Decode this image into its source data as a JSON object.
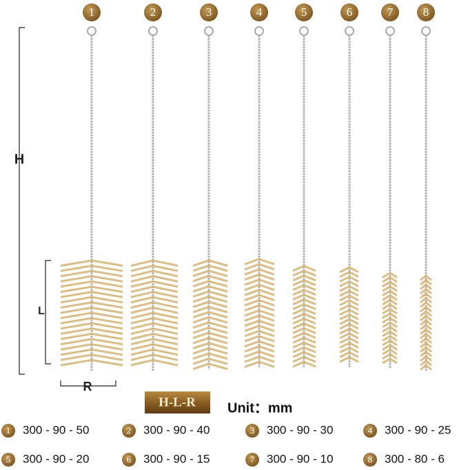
{
  "dimension_labels": {
    "h": "H",
    "l": "L",
    "r": "R"
  },
  "legend": {
    "format": "H-L-R",
    "unit": "Unit：mm"
  },
  "brushes": [
    {
      "number": "1",
      "spec": "300 - 90 - 50"
    },
    {
      "number": "2",
      "spec": "300 - 90 - 40"
    },
    {
      "number": "3",
      "spec": "300 - 90 - 30"
    },
    {
      "number": "4",
      "spec": "300 - 90 - 25"
    },
    {
      "number": "5",
      "spec": "300 - 90 - 20"
    },
    {
      "number": "6",
      "spec": "300 - 90 - 15"
    },
    {
      "number": "7",
      "spec": "300 - 90 - 10"
    },
    {
      "number": "8",
      "spec": "300 - 80 - 6"
    }
  ]
}
